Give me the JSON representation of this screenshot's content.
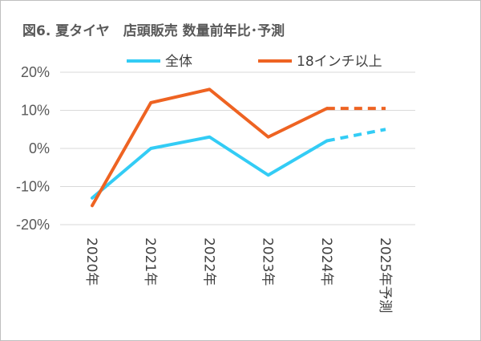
{
  "chart_data": {
    "type": "line",
    "title": "図6. 夏タイヤ　店頭販売 数量前年比･予測",
    "categories": [
      "2020年",
      "2021年",
      "2022年",
      "2023年",
      "2024年",
      "2025年予測"
    ],
    "y_ticks": [
      "20%",
      "10%",
      "0%",
      "-10%",
      "-20%"
    ],
    "ylim": [
      -20,
      20
    ],
    "grid": true,
    "legend_position": "top",
    "forecast_from_index": 4,
    "series": [
      {
        "name": "全体",
        "color": "#33ccf5",
        "values": [
          -13,
          0,
          3,
          -7,
          2,
          5
        ]
      },
      {
        "name": "18インチ以上",
        "color": "#ee6322",
        "values": [
          -15,
          12,
          15.5,
          3,
          10.5,
          10.5
        ]
      }
    ]
  }
}
